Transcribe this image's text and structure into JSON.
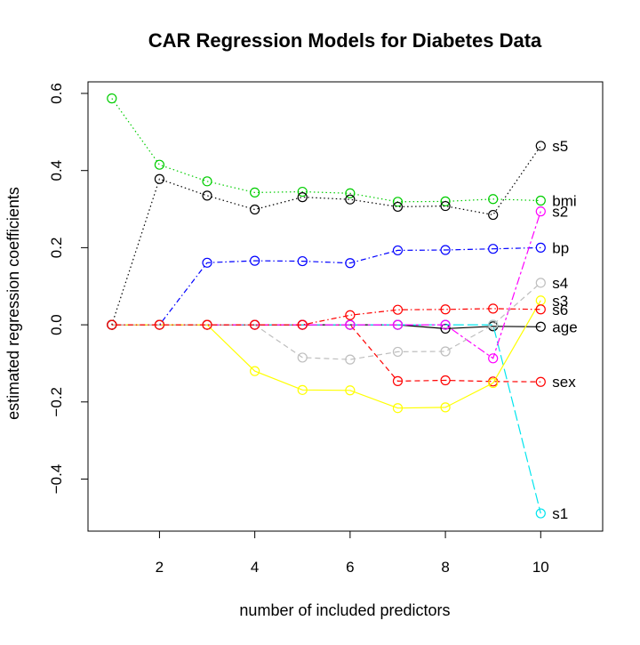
{
  "chart_data": {
    "type": "line",
    "title": "CAR Regression Models for Diabetes Data",
    "xlabel": "number of included predictors",
    "ylabel": "estimated regression coefficients",
    "xlim": [
      0.5,
      11.3
    ],
    "ylim": [
      -0.535,
      0.63
    ],
    "x_ticks": [
      2,
      4,
      6,
      8,
      10
    ],
    "x_tick_labels": [
      "2",
      "4",
      "6",
      "8",
      "10"
    ],
    "y_ticks": [
      -0.4,
      -0.2,
      0.0,
      0.2,
      0.4,
      0.6
    ],
    "y_tick_labels": [
      "−0.4",
      "−0.2",
      "0.0",
      "0.2",
      "0.4",
      "0.6"
    ],
    "grid": false,
    "x": [
      1,
      2,
      3,
      4,
      5,
      6,
      7,
      8,
      9,
      10
    ],
    "series": [
      {
        "name": "age",
        "color": "#000000",
        "dash": "solid",
        "values": [
          0,
          0,
          0,
          0,
          0,
          0,
          0,
          -0.01,
          -0.004,
          -0.005
        ]
      },
      {
        "name": "sex",
        "color": "#ff0000",
        "dash": "dashed",
        "values": [
          0,
          0,
          0,
          0,
          0,
          0,
          -0.146,
          -0.144,
          -0.147,
          -0.148
        ]
      },
      {
        "name": "bmi",
        "color": "#00cd00",
        "dash": "dotted",
        "values": [
          0.587,
          0.415,
          0.372,
          0.343,
          0.345,
          0.341,
          0.319,
          0.32,
          0.326,
          0.322
        ]
      },
      {
        "name": "bp",
        "color": "#0000ff",
        "dash": "dotdash",
        "values": [
          0,
          0,
          0.161,
          0.166,
          0.165,
          0.16,
          0.193,
          0.194,
          0.197,
          0.2
        ]
      },
      {
        "name": "s1",
        "color": "#00e5ee",
        "dash": "longdash",
        "values": [
          0,
          0,
          0,
          0,
          0,
          0,
          0,
          0,
          0,
          -0.489
        ]
      },
      {
        "name": "s2",
        "color": "#ff00ff",
        "dash": "twodash",
        "values": [
          0,
          0,
          0,
          0,
          0,
          0,
          0,
          0,
          -0.087,
          0.294
        ]
      },
      {
        "name": "s3",
        "color": "#ffff00",
        "dash": "solid",
        "values": [
          0,
          0,
          0,
          -0.12,
          -0.169,
          -0.17,
          -0.216,
          -0.214,
          -0.151,
          0.063
        ]
      },
      {
        "name": "s4",
        "color": "#bebebe",
        "dash": "dashed",
        "values": [
          0,
          0,
          0,
          0,
          -0.085,
          -0.09,
          -0.07,
          -0.069,
          0.0,
          0.109
        ]
      },
      {
        "name": "s5",
        "color": "#000000",
        "dash": "dotted",
        "values": [
          0,
          0.378,
          0.335,
          0.299,
          0.331,
          0.325,
          0.306,
          0.308,
          0.285,
          0.464
        ]
      },
      {
        "name": "s6",
        "color": "#ff0000",
        "dash": "dotdash",
        "values": [
          0,
          0,
          0,
          0,
          0,
          0.025,
          0.039,
          0.04,
          0.042,
          0.04
        ]
      }
    ]
  }
}
